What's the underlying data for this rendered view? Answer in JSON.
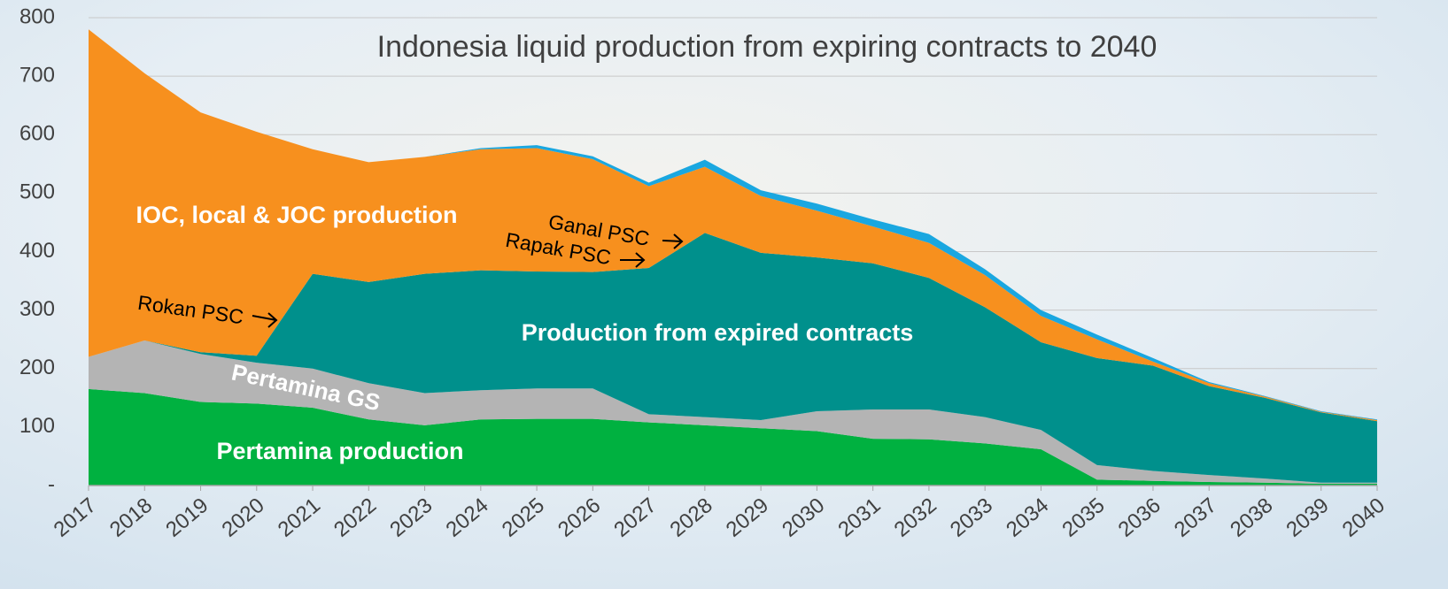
{
  "chart_data": {
    "type": "stacked-area",
    "title": "Indonesia liquid production from expiring contracts to 2040",
    "categories": [
      "2017",
      "2018",
      "2019",
      "2020",
      "2021",
      "2022",
      "2023",
      "2024",
      "2025",
      "2026",
      "2027",
      "2028",
      "2029",
      "2030",
      "2031",
      "2032",
      "2033",
      "2034",
      "2035",
      "2036",
      "2037",
      "2038",
      "2039",
      "2040"
    ],
    "series": [
      {
        "name": "Pertamina production",
        "color": "#00b140",
        "values": [
          165,
          158,
          143,
          140,
          133,
          113,
          103,
          113,
          114,
          114,
          108,
          103,
          98,
          93,
          80,
          79,
          72,
          62,
          10,
          8,
          6,
          5,
          3,
          3
        ]
      },
      {
        "name": "Pertamina GS",
        "color": "#b4b4b4",
        "values": [
          55,
          90,
          82,
          70,
          67,
          62,
          55,
          50,
          52,
          52,
          14,
          14,
          14,
          34,
          50,
          51,
          45,
          33,
          25,
          17,
          12,
          7,
          2,
          2
        ]
      },
      {
        "name": "Production from expired contracts",
        "color": "#00908c",
        "values": [
          0,
          0,
          3,
          12,
          162,
          173,
          204,
          205,
          200,
          199,
          250,
          315,
          286,
          263,
          250,
          225,
          188,
          150,
          183,
          180,
          152,
          138,
          120,
          105
        ]
      },
      {
        "name": "IOC, local & JOC production",
        "color": "#f7901e",
        "values": [
          560,
          457,
          410,
          383,
          213,
          205,
          200,
          207,
          211,
          193,
          140,
          113,
          97,
          80,
          63,
          60,
          55,
          45,
          32,
          7,
          5,
          2,
          1,
          2
        ]
      },
      {
        "color": "#1aa7e0",
        "values": [
          0,
          0,
          0,
          0,
          0,
          0,
          0,
          2,
          5,
          5,
          6,
          12,
          10,
          12,
          12,
          15,
          10,
          10,
          8,
          6,
          2,
          1,
          1,
          1
        ]
      }
    ],
    "annotations": [
      "Rokan PSC",
      "Ganal PSC",
      "Rapak PSC"
    ],
    "ylim": [
      0,
      800
    ],
    "yticks": [
      {
        "value": 0,
        "label": "-"
      },
      100,
      200,
      300,
      400,
      500,
      600,
      700,
      800
    ],
    "grid": true
  }
}
